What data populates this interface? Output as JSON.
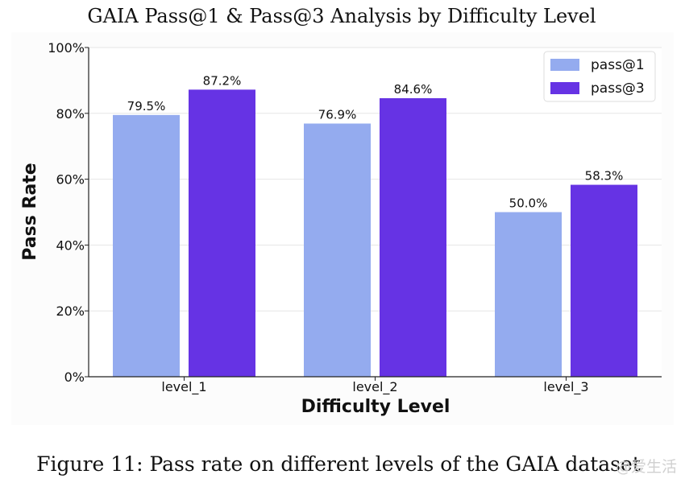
{
  "chart_data": {
    "type": "bar",
    "title": "GAIA Pass@1 & Pass@3 Analysis by Difficulty Level",
    "xlabel": "Difficulty Level",
    "ylabel": "Pass Rate",
    "categories": [
      "level_1",
      "level_2",
      "level_3"
    ],
    "series": [
      {
        "name": "pass@1",
        "values": [
          79.5,
          76.9,
          50.0
        ],
        "labels": [
          "79.5%",
          "76.9%",
          "50.0%"
        ],
        "color": "#94abef"
      },
      {
        "name": "pass@3",
        "values": [
          87.2,
          84.6,
          58.3
        ],
        "labels": [
          "87.2%",
          "84.6%",
          "58.3%"
        ],
        "color": "#6633e4"
      }
    ],
    "ylim": [
      0,
      100
    ],
    "yticks": [
      0,
      20,
      40,
      60,
      80,
      100
    ],
    "ytick_labels": [
      "0%",
      "20%",
      "40%",
      "60%",
      "80%",
      "100%"
    ],
    "grid": true,
    "legend_position": "top-right"
  },
  "caption": "Figure 11: Pass rate on different levels of the GAIA dataset",
  "watermark": "@爱生活"
}
